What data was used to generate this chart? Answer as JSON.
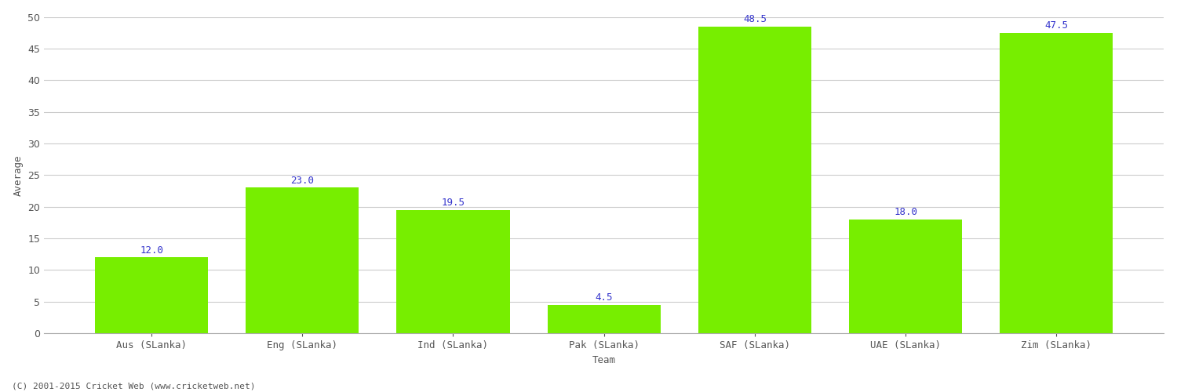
{
  "categories": [
    "Aus (SLanka)",
    "Eng (SLanka)",
    "Ind (SLanka)",
    "Pak (SLanka)",
    "SAF (SLanka)",
    "UAE (SLanka)",
    "Zim (SLanka)"
  ],
  "values": [
    12.0,
    23.0,
    19.5,
    4.5,
    48.5,
    18.0,
    47.5
  ],
  "bar_color": "#77ee00",
  "bar_edge_color": "#77ee00",
  "label_color": "#3333cc",
  "xlabel": "Team",
  "ylabel": "Average",
  "ylim": [
    0,
    50
  ],
  "yticks": [
    0,
    5,
    10,
    15,
    20,
    25,
    30,
    35,
    40,
    45,
    50
  ],
  "background_color": "#ffffff",
  "grid_color": "#cccccc",
  "footer": "(C) 2001-2015 Cricket Web (www.cricketweb.net)",
  "label_fontsize": 9,
  "axis_fontsize": 9,
  "title_fontsize": 11,
  "bar_width": 0.75
}
